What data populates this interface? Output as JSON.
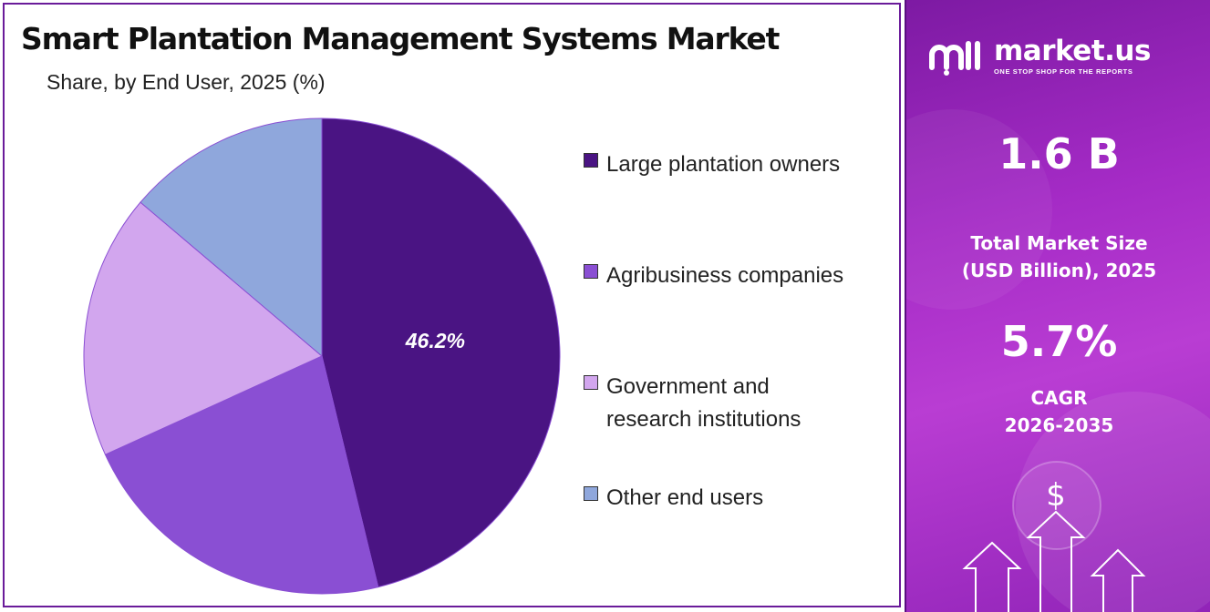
{
  "title": "Smart Plantation Management Systems Market",
  "subtitle": "Share, by End User, 2025 (%)",
  "chart_data": {
    "type": "pie",
    "title": "Smart Plantation Management Systems Market",
    "subtitle": "Share, by End User, 2025 (%)",
    "categories": [
      "Large plantation owners",
      "Agribusiness companies",
      "Government and research institutions",
      "Other end users"
    ],
    "values": [
      46.2,
      22.0,
      18.0,
      13.8
    ],
    "value_labels": [
      "46.2%",
      null,
      null,
      null
    ],
    "colors": [
      "#4a1483",
      "#8a4fd3",
      "#d2a6ee",
      "#8fa7dc"
    ],
    "legend_position": "right"
  },
  "legend": [
    {
      "l1": "Large plantation owners",
      "l2": ""
    },
    {
      "l1": "Agribusiness companies",
      "l2": ""
    },
    {
      "l1": "Government and",
      "l2": "research institutions"
    },
    {
      "l1": "Other end users",
      "l2": ""
    }
  ],
  "sidebar": {
    "brand_name": "market.us",
    "brand_tagline": "ONE STOP SHOP FOR THE REPORTS",
    "market_size_value": "1.6 B",
    "market_size_label_1": "Total Market Size",
    "market_size_label_2": "(USD Billion), 2025",
    "cagr_value": "5.7%",
    "cagr_label_1": "CAGR",
    "cagr_label_2": "2026-2035",
    "dollar_glyph": "$"
  },
  "colors": {
    "panel_border": "#6a1b9a",
    "sidebar_gradient": [
      "#7d1aa3",
      "#b93dd3"
    ]
  }
}
